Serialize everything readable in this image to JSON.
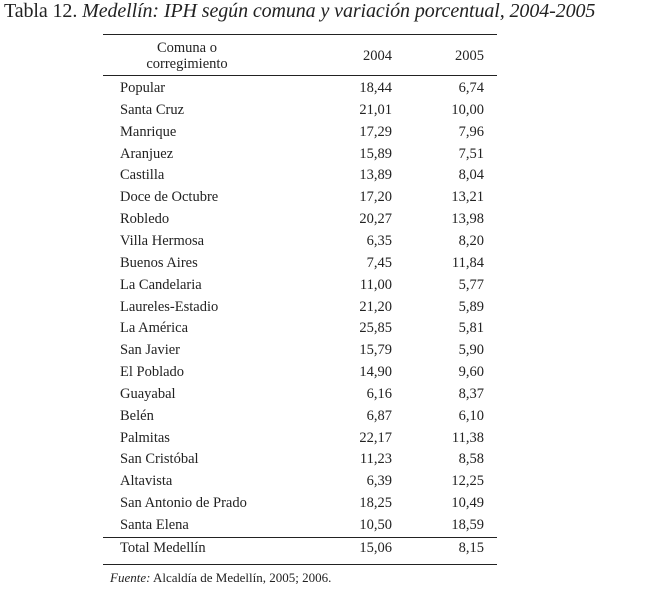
{
  "title": {
    "label": "Tabla 12.",
    "text": "Medellín: IPH según comuna y variación porcentual, 2004-2005"
  },
  "table": {
    "headers": {
      "name_line1": "Comuna o",
      "name_line2": "corregimiento",
      "y2004": "2004",
      "y2005": "2005"
    },
    "rows": [
      {
        "name": "Popular",
        "y2004": "18,44",
        "y2005": "6,74"
      },
      {
        "name": "Santa Cruz",
        "y2004": "21,01",
        "y2005": "10,00"
      },
      {
        "name": "Manrique",
        "y2004": "17,29",
        "y2005": "7,96"
      },
      {
        "name": "Aranjuez",
        "y2004": "15,89",
        "y2005": "7,51"
      },
      {
        "name": "Castilla",
        "y2004": "13,89",
        "y2005": "8,04"
      },
      {
        "name": "Doce de Octubre",
        "y2004": "17,20",
        "y2005": "13,21"
      },
      {
        "name": "Robledo",
        "y2004": "20,27",
        "y2005": "13,98"
      },
      {
        "name": "Villa Hermosa",
        "y2004": "6,35",
        "y2005": "8,20"
      },
      {
        "name": "Buenos Aires",
        "y2004": "7,45",
        "y2005": "11,84"
      },
      {
        "name": "La Candelaria",
        "y2004": "11,00",
        "y2005": "5,77"
      },
      {
        "name": "Laureles-Estadio",
        "y2004": "21,20",
        "y2005": "5,89"
      },
      {
        "name": "La América",
        "y2004": "25,85",
        "y2005": "5,81"
      },
      {
        "name": "San Javier",
        "y2004": "15,79",
        "y2005": "5,90"
      },
      {
        "name": "El Poblado",
        "y2004": "14,90",
        "y2005": "9,60"
      },
      {
        "name": "Guayabal",
        "y2004": "6,16",
        "y2005": "8,37"
      },
      {
        "name": "Belén",
        "y2004": "6,87",
        "y2005": "6,10"
      },
      {
        "name": "Palmitas",
        "y2004": "22,17",
        "y2005": "11,38"
      },
      {
        "name": "San Cristóbal",
        "y2004": "11,23",
        "y2005": "8,58"
      },
      {
        "name": "Altavista",
        "y2004": "6,39",
        "y2005": "12,25"
      },
      {
        "name": "San Antonio de Prado",
        "y2004": "18,25",
        "y2005": "10,49"
      },
      {
        "name": "Santa Elena",
        "y2004": "10,50",
        "y2005": "18,59"
      }
    ],
    "total": {
      "name": "Total Medellín",
      "y2004": "15,06",
      "y2005": "8,15"
    }
  },
  "source": {
    "label": "Fuente:",
    "text": "Alcaldía de Medellín, 2005; 2006."
  }
}
